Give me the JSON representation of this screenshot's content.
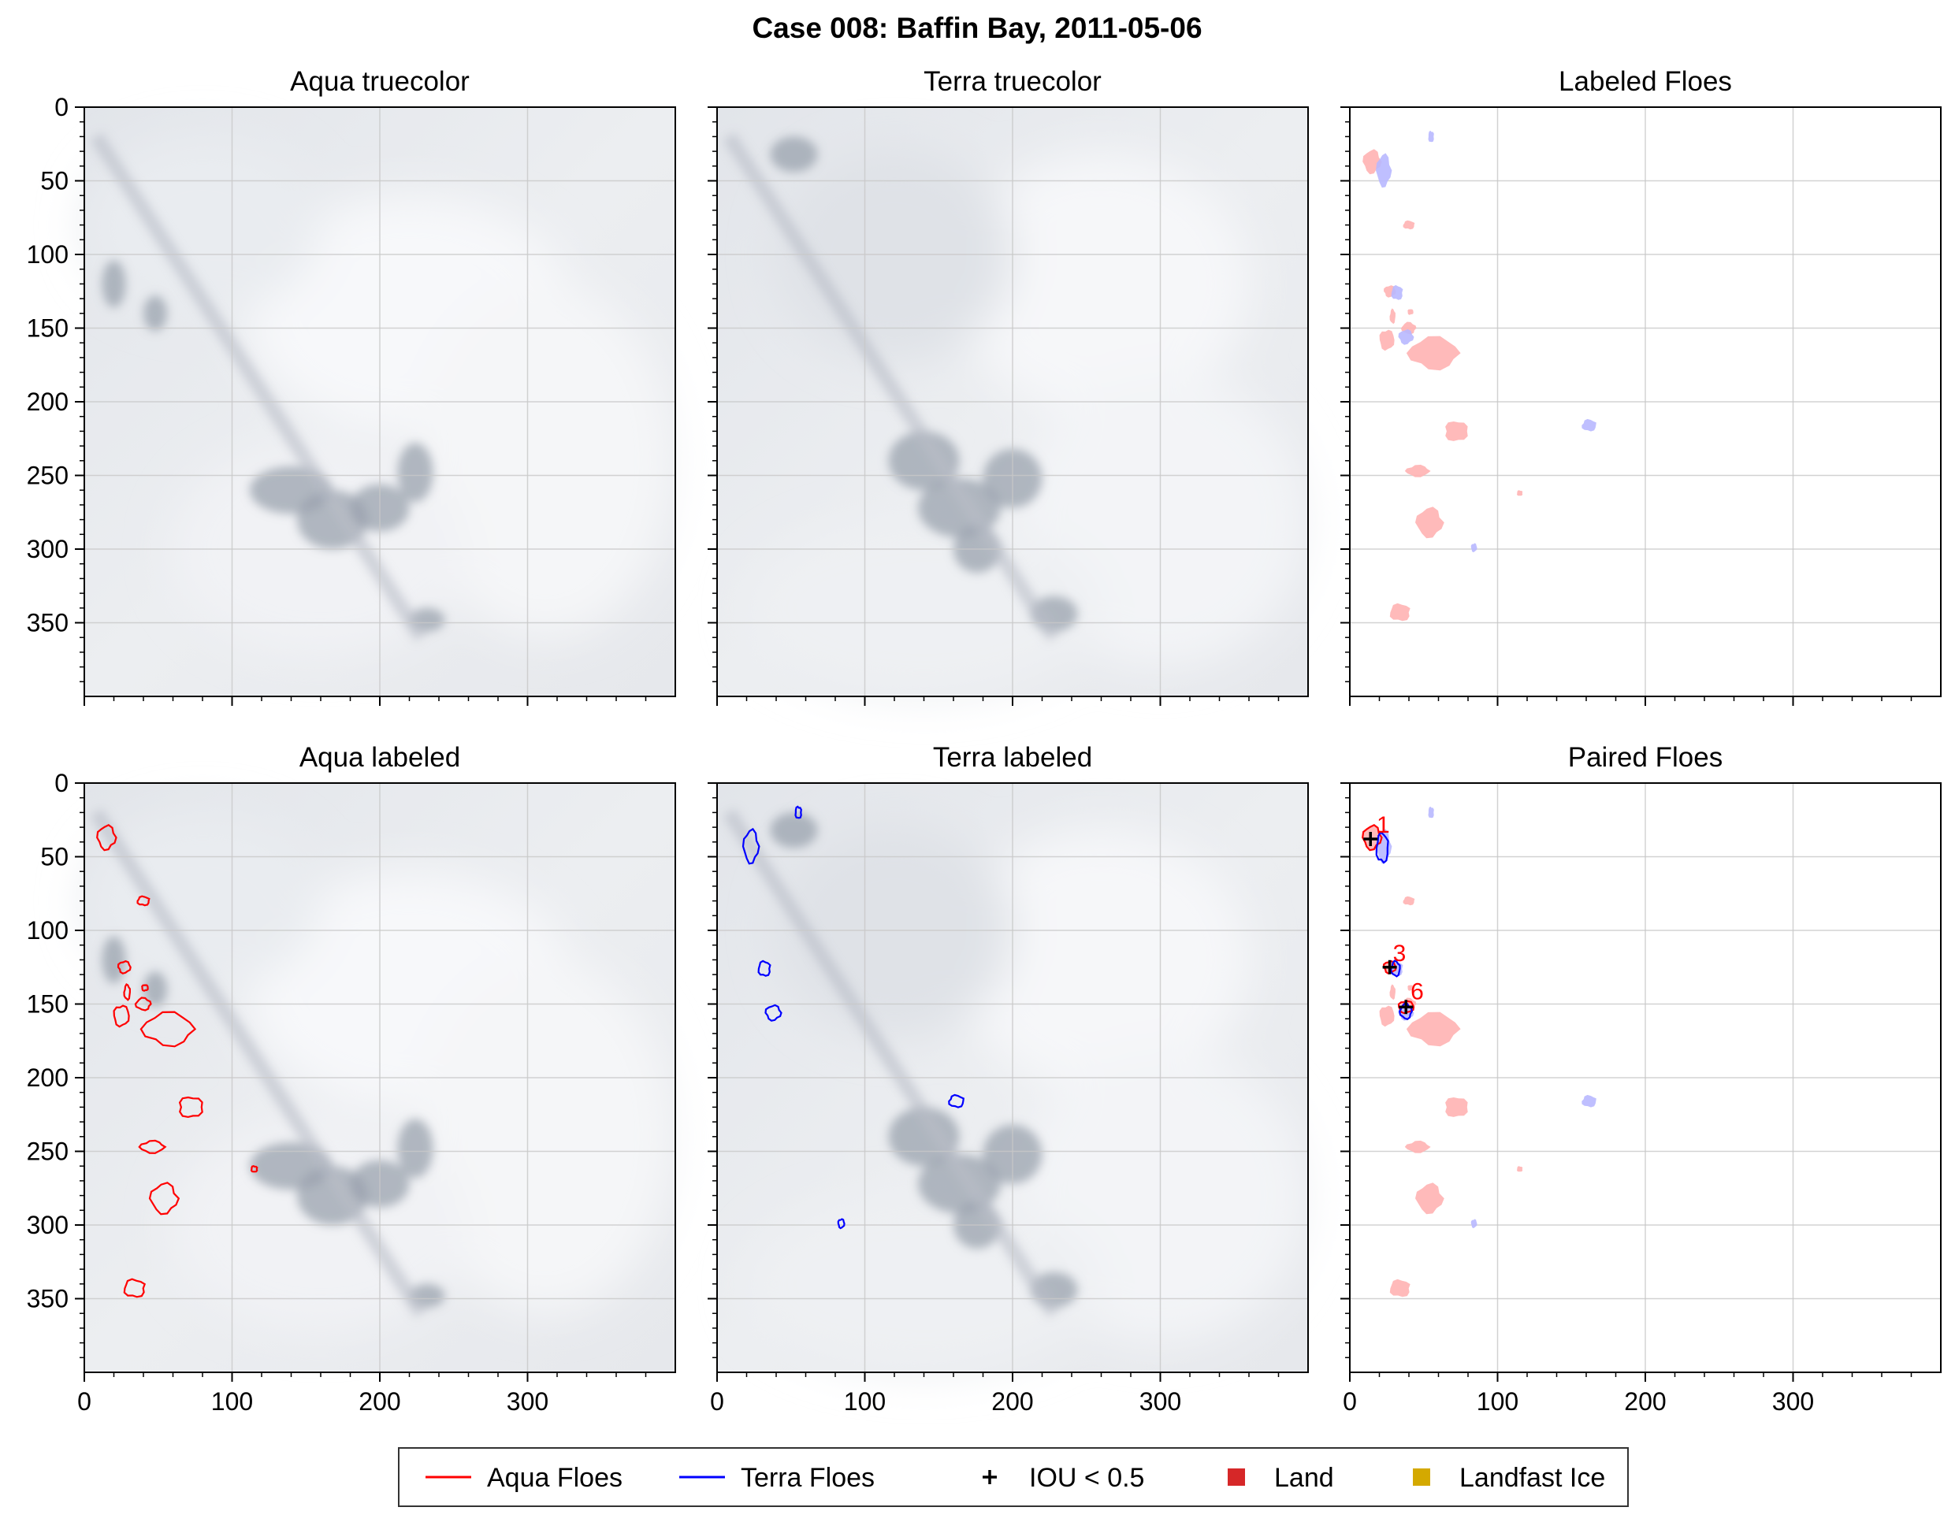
{
  "figure_title": "Case 008: Baffin Bay, 2011-05-06",
  "colors": {
    "aqua": "#ff0000",
    "terra": "#0000ff",
    "aqua_fill": "#ffb3b3",
    "terra_fill": "#b8b8ff",
    "land": "#d62728",
    "landfast_ice": "#d4a900",
    "grid": "#c8c8c8"
  },
  "legend": {
    "items": [
      {
        "label": "Aqua Floes",
        "marker": "line",
        "color": "#ff0000"
      },
      {
        "label": "Terra Floes",
        "marker": "line",
        "color": "#0000ff"
      },
      {
        "label": "IOU < 0.5",
        "marker": "plus",
        "color": "#000000"
      },
      {
        "label": "Land",
        "marker": "square",
        "color": "#d62728"
      },
      {
        "label": "Landfast Ice",
        "marker": "square",
        "color": "#d4a900"
      }
    ]
  },
  "chart_data": [
    {
      "type": "image",
      "title": "Aqua truecolor",
      "xlim": [
        0,
        400
      ],
      "ylim": [
        400,
        0
      ],
      "xticks": [],
      "yticks": [
        "0",
        "50",
        "100",
        "150",
        "200",
        "250",
        "300",
        "350"
      ],
      "grid": true
    },
    {
      "type": "image",
      "title": "Terra truecolor",
      "xlim": [
        0,
        400
      ],
      "ylim": [
        400,
        0
      ],
      "xticks": [],
      "yticks": [],
      "grid": true
    },
    {
      "type": "image",
      "title": "Labeled Floes",
      "xlim": [
        0,
        400
      ],
      "ylim": [
        400,
        0
      ],
      "xticks": [],
      "yticks": [],
      "grid": true
    },
    {
      "type": "image",
      "title": "Aqua labeled",
      "xlim": [
        0,
        400
      ],
      "ylim": [
        400,
        0
      ],
      "xticks": [
        "0",
        "100",
        "200",
        "300"
      ],
      "yticks": [
        "0",
        "50",
        "100",
        "150",
        "200",
        "250",
        "300",
        "350"
      ],
      "grid": true
    },
    {
      "type": "image",
      "title": "Terra labeled",
      "xlim": [
        0,
        400
      ],
      "ylim": [
        400,
        0
      ],
      "xticks": [
        "0",
        "100",
        "200",
        "300"
      ],
      "yticks": [],
      "grid": true
    },
    {
      "type": "image",
      "title": "Paired Floes",
      "xlim": [
        0,
        400
      ],
      "ylim": [
        400,
        0
      ],
      "xticks": [
        "0",
        "100",
        "200",
        "300"
      ],
      "yticks": [],
      "grid": true,
      "pair_labels": [
        {
          "label": "1",
          "x": 16,
          "y": 38
        },
        {
          "label": "3",
          "x": 27,
          "y": 125
        },
        {
          "label": "6",
          "x": 39,
          "y": 151
        }
      ],
      "iou_markers": [
        {
          "x": 14,
          "y": 38
        },
        {
          "x": 27,
          "y": 125
        },
        {
          "x": 38,
          "y": 152
        }
      ]
    }
  ],
  "floes": {
    "aqua": [
      {
        "id": "a1",
        "center": [
          15,
          37
        ],
        "radius": [
          6,
          8
        ]
      },
      {
        "id": "a2",
        "center": [
          40,
          80
        ],
        "radius": [
          4,
          3
        ]
      },
      {
        "id": "a3",
        "center": [
          27,
          125
        ],
        "radius": [
          4,
          4
        ]
      },
      {
        "id": "a4",
        "center": [
          29,
          142
        ],
        "radius": [
          2,
          5
        ]
      },
      {
        "id": "a5",
        "center": [
          25,
          158
        ],
        "radius": [
          5,
          7
        ]
      },
      {
        "id": "a6",
        "center": [
          40,
          150
        ],
        "radius": [
          5,
          4
        ]
      },
      {
        "id": "a7",
        "center": [
          41,
          139
        ],
        "radius": [
          2,
          2
        ]
      },
      {
        "id": "a8",
        "center": [
          57,
          167
        ],
        "radius": [
          17,
          11
        ]
      },
      {
        "id": "a9",
        "center": [
          72,
          220
        ],
        "radius": [
          8,
          7
        ]
      },
      {
        "id": "a10",
        "center": [
          46,
          247
        ],
        "radius": [
          8,
          4
        ]
      },
      {
        "id": "a11",
        "center": [
          115,
          262
        ],
        "radius": [
          2,
          2
        ]
      },
      {
        "id": "a12",
        "center": [
          54,
          282
        ],
        "radius": [
          9,
          10
        ]
      },
      {
        "id": "a13",
        "center": [
          34,
          343
        ],
        "radius": [
          7,
          6
        ]
      }
    ],
    "terra": [
      {
        "id": "t1",
        "center": [
          55,
          20
        ],
        "radius": [
          2,
          4
        ]
      },
      {
        "id": "t2",
        "center": [
          23,
          43
        ],
        "radius": [
          5,
          11
        ]
      },
      {
        "id": "t3",
        "center": [
          32,
          126
        ],
        "radius": [
          4,
          5
        ]
      },
      {
        "id": "t4",
        "center": [
          38,
          156
        ],
        "radius": [
          5,
          5
        ]
      },
      {
        "id": "t5",
        "center": [
          162,
          216
        ],
        "radius": [
          5,
          4
        ]
      },
      {
        "id": "t6",
        "center": [
          84,
          299
        ],
        "radius": [
          2,
          3
        ]
      }
    ]
  }
}
